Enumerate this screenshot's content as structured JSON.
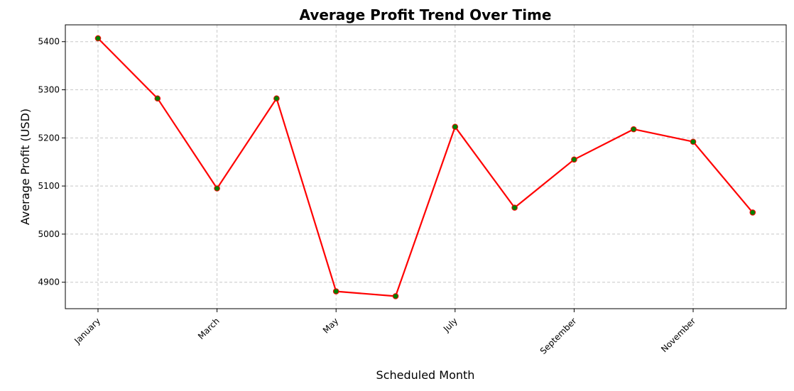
{
  "chart_data": {
    "type": "line",
    "title": "Average Profit Trend Over Time",
    "xlabel": "Scheduled Month",
    "ylabel": "Average Profit (USD)",
    "x": [
      "January",
      "February",
      "March",
      "April",
      "May",
      "June",
      "July",
      "August",
      "September",
      "October",
      "November",
      "December"
    ],
    "x_tick_labels": [
      "January",
      "March",
      "May",
      "July",
      "September",
      "November"
    ],
    "y_ticks": [
      4900,
      5000,
      5100,
      5200,
      5300,
      5400
    ],
    "ylim": [
      4845,
      5435
    ],
    "grid": true,
    "series": [
      {
        "values": [
          5407,
          5282,
          5095,
          5282,
          4881,
          4871,
          5223,
          5055,
          5155,
          5218,
          5192,
          5045
        ],
        "line_color": "#ff0000",
        "marker_color": "#008000"
      }
    ]
  }
}
